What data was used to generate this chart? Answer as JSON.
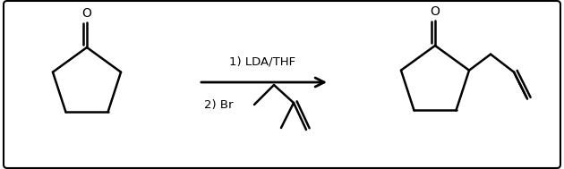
{
  "bg_color": "#ffffff",
  "line_color": "#000000",
  "line_width": 1.8,
  "fig_width": 6.3,
  "fig_height": 1.89,
  "dpi": 100,
  "label1": "1) LDA/THF",
  "label2": "2) Br",
  "font_size": 9.5
}
